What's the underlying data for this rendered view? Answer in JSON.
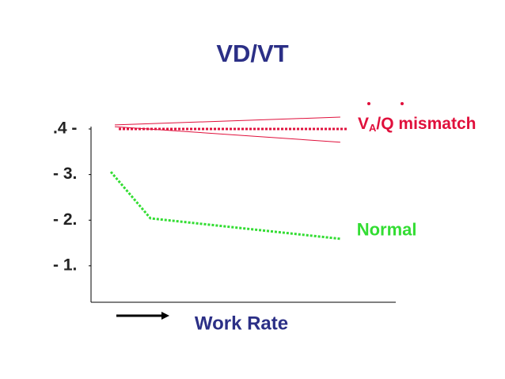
{
  "chart_data": {
    "type": "line",
    "title": "VD/VT",
    "xlabel": "Work Rate",
    "xlim": [
      0,
      1
    ],
    "ylim": [
      0.02,
      0.4
    ],
    "yticks": [
      {
        "value": 0.4,
        "label": ".4 -"
      },
      {
        "value": 0.3,
        "label": "- 3."
      },
      {
        "value": 0.2,
        "label": "- 2."
      },
      {
        "value": 0.1,
        "label": "- 1."
      }
    ],
    "series": [
      {
        "name": "Normal",
        "color": "#33dd33",
        "style": "dotted",
        "x": [
          0.065,
          0.195,
          0.82
        ],
        "values": [
          0.306,
          0.204,
          0.159
        ]
      },
      {
        "color": "#e0103c",
        "style": "dotted",
        "x": [
          0.091,
          0.844
        ],
        "values": [
          0.4,
          0.4
        ]
      },
      {
        "color": "#e0103c",
        "style": "solid",
        "x": [
          0.078,
          0.818
        ],
        "values": [
          0.409,
          0.426
        ]
      },
      {
        "color": "#e0103c",
        "style": "solid",
        "x": [
          0.078,
          0.818
        ],
        "values": [
          0.405,
          0.371
        ]
      }
    ],
    "annotation": {
      "parts": [
        "V",
        "A",
        "/Q mismatch"
      ],
      "color": "#e0103c"
    }
  }
}
